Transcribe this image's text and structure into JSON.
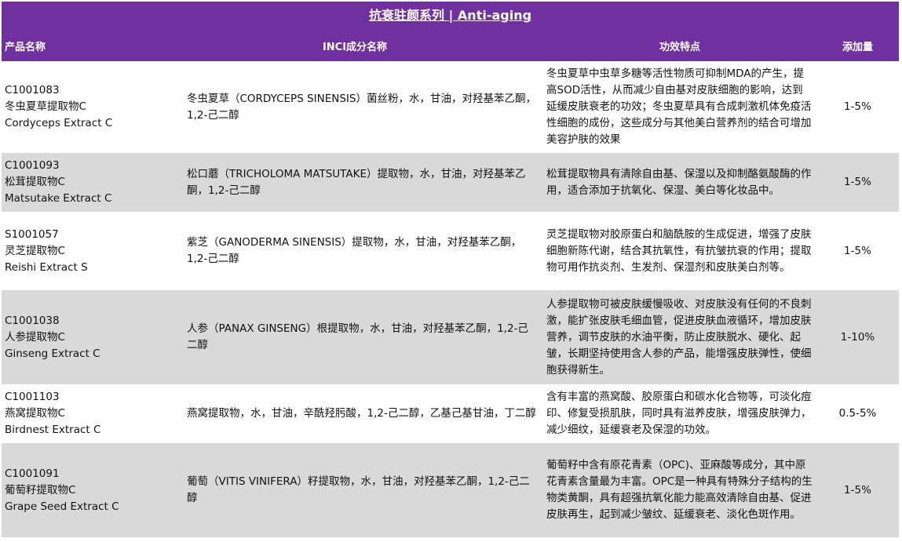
{
  "title": "抗衰驻颜系列 | Anti-aging",
  "colors": {
    "header": "#7030a0",
    "row_alt": "#d9d9d9"
  },
  "columns": [
    "产品名称",
    "INCI成分名称",
    "功效特点",
    "添加量"
  ],
  "rows": [
    {
      "code": "C1001083",
      "cn": "冬虫夏草提取物C",
      "en": "Cordyceps Extract C",
      "inci": "冬虫夏草（CORDYCEPS SINENSIS）菌丝粉，水，甘油，对羟基苯乙酮，1,2-己二醇",
      "effect": "冬虫夏草中虫草多糖等活性物质可抑制MDA的产生，提高SOD活性，从而减少自由基对皮肤细胞的影响，达到延缓皮肤衰老的功效；冬虫夏草具有合成刺激机体免疫活性细胞的成份，这些成分与其他美白营养剂的结合可增加美容护肤的效果",
      "dose": "1-5%"
    },
    {
      "code": "C1001093",
      "cn": "松茸提取物C",
      "en": "Matsutake Extract C",
      "inci": "松口蘑（TRICHOLOMA MATSUTAKE）提取物，水，甘油，对羟基苯乙酮，1,2-己二醇",
      "effect": "松茸提取物具有清除自由基、保湿以及抑制酪氨酸酶的作用，适合添加于抗氧化、保湿、美白等化妆品中。",
      "dose": "1-5%"
    },
    {
      "code": "S1001057",
      "cn": "灵芝提取物C",
      "en": "Reishi Extract S",
      "inci": "紫芝（GANODERMA SINENSIS）提取物，水，甘油，对羟基苯乙酮，1,2-己二醇",
      "effect": "灵芝提取物对胶原蛋白和脑酰胺的生成促进，增强了皮肤细胞新陈代谢，结合其抗氧性，有抗皱抗衰的作用；提取物可用作抗炎剂、生发剂、保湿剂和皮肤美白剂等。",
      "dose": "1-5%"
    },
    {
      "code": "C1001038",
      "cn": "人参提取物C",
      "en": "Ginseng Extract C",
      "inci": "人参（PANAX GINSENG）根提取物，水，甘油，对羟基苯乙酮，1,2-己二醇",
      "effect": "人参提取物可被皮肤缓慢吸收、对皮肤没有任何的不良刺激，能扩张皮肤毛细血管，促进皮肤血液循环，增加皮肤营养，调节皮肤的水油平衡，防止皮肤脱水、硬化、起皱，长期坚持使用含人参的产品，能增强皮肤弹性，使细胞获得新生。",
      "dose": "1-10%"
    },
    {
      "code": "C1001103",
      "cn": "燕窝提取物C",
      "en": "Birdnest Extract C",
      "inci": "燕窝提取物，水，甘油，辛酰羟肟酸，1,2-己二醇，乙基己基甘油，丁二醇",
      "effect": "含有丰富的燕窝酸、胶原蛋白和碳水化合物等，可淡化痘印、修复受损肌肤，同时具有滋养皮肤，增强皮肤弹力，减少细纹，延缓衰老及保湿的功效。",
      "dose": "0.5-5%"
    },
    {
      "code": "C1001091",
      "cn": "葡萄籽提取物C",
      "en": "Grape Seed Extract C",
      "inci": "葡萄（VITIS VINIFERA）籽提取物，水，甘油，对羟基苯乙酮，1,2-己二醇",
      "effect": "葡萄籽中含有原花青素（OPC)、亚麻酸等成分，其中原花青素含量最为丰富。OPC是一种具有特殊分子结构的生物类黄酮，具有超强抗氧化能力能高效清除自由基、促进皮肤再生，起到减少皱纹、延缓衰老、淡化色斑作用。",
      "dose": "1-5%"
    }
  ]
}
